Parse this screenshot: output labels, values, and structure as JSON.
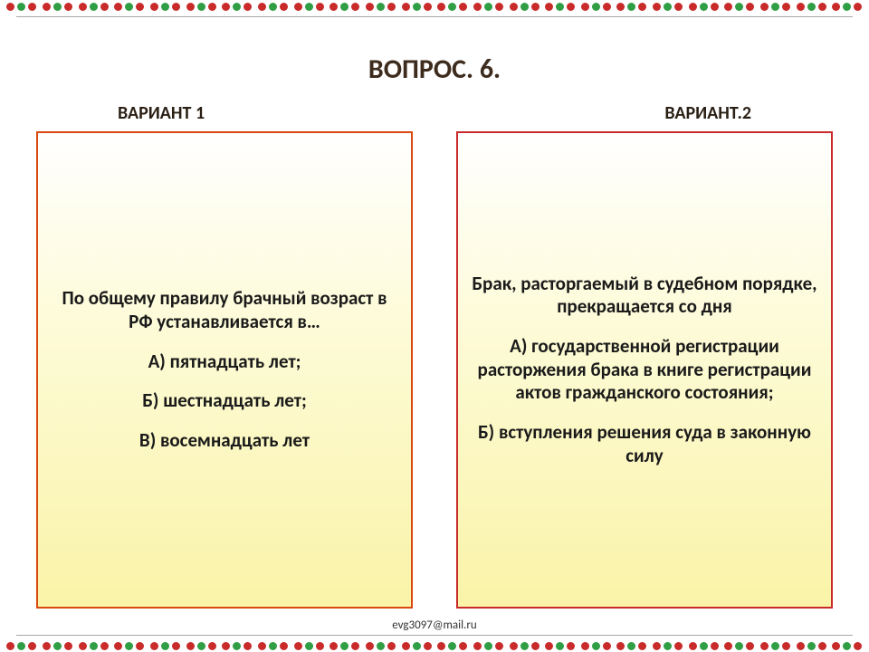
{
  "border": {
    "group_count": 24,
    "colors": [
      "#c92a2a",
      "#2f9e44",
      "#c92a2a"
    ]
  },
  "title": "ВОПРОС. 6.",
  "title_color": "#3d2c1e",
  "variant1": {
    "label": "ВАРИАНТ 1",
    "border_color": "#d9480f",
    "stem": "По общему правилу брачный возраст в РФ устанавливается в…",
    "options": [
      "А) пятнадцать лет;",
      "Б) шестнадцать лет;",
      "В) восемнадцать лет"
    ]
  },
  "variant2": {
    "label": "ВАРИАНТ.2",
    "border_color": "#c92a2a",
    "stem": "Брак, расторгаемый в судебном порядке, прекращается со дня",
    "options": [
      "А) государственной регистрации расторжения брака в книге регистрации актов гражданского состояния;",
      "Б) вступления решения суда в законную силу"
    ]
  },
  "footer_email": "evg3097@mail.ru",
  "box_gradient": {
    "top": "#ffffff",
    "mid": "#fdfbd8",
    "bottom": "#faf3a8"
  }
}
